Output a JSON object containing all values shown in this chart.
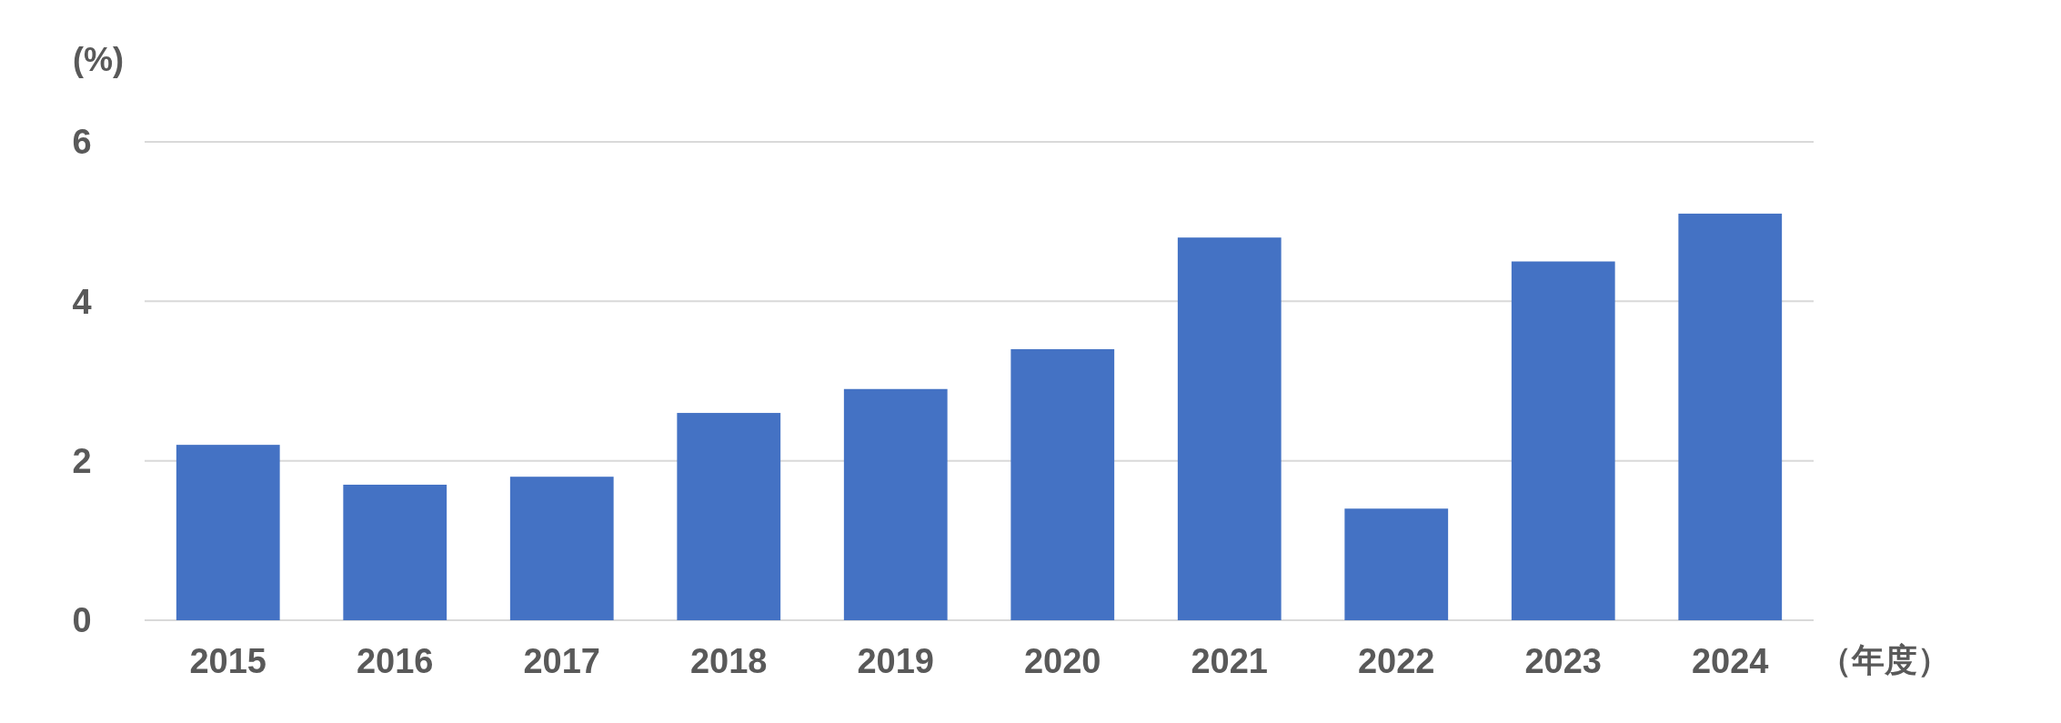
{
  "chart_data": {
    "type": "bar",
    "ylabel": "(%)",
    "xlabel": "（年度）",
    "categories": [
      "2015",
      "2016",
      "2017",
      "2018",
      "2019",
      "2020",
      "2021",
      "2022",
      "2023",
      "2024"
    ],
    "values": [
      2.2,
      1.7,
      1.8,
      2.6,
      2.9,
      3.4,
      4.8,
      1.4,
      4.5,
      5.1
    ],
    "color": "#4472c4",
    "ylim": [
      0,
      6
    ],
    "yticks": [
      0,
      2,
      4,
      6
    ],
    "grid": "y"
  }
}
